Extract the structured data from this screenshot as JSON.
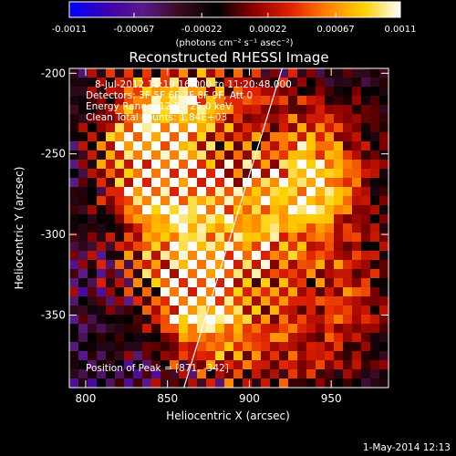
{
  "chart_data": {
    "type": "heatmap",
    "title": "Reconstructed RHESSI Image",
    "xlabel": "Heliocentric X (arcsec)",
    "ylabel": "Heliocentric Y (arcsec)",
    "xlim": [
      790,
      985
    ],
    "ylim": [
      -395,
      -197
    ],
    "xticks": [
      800,
      850,
      900,
      950
    ],
    "yticks": [
      -200,
      -250,
      -300,
      -350
    ],
    "colorbar": {
      "min": -0.0011,
      "max": 0.0011,
      "tick_values": [
        -0.0011,
        -0.00067,
        -0.00022,
        0.00022,
        0.00067,
        0.0011
      ],
      "tick_labels": [
        "-0.0011",
        "-0.00067",
        "-0.00022",
        "0.00022",
        "0.00067",
        "0.0011"
      ],
      "units_label": "(photons cm⁻² s⁻¹ asec⁻²)"
    },
    "annotations": [
      "8-Jul-2012 11:19:16.000 to 11:20:48.000",
      "Detectors: 3F 5F 6F 7F 8F 9F, Att 0",
      "Energy Range: 12.0 - 25.0 keV",
      "Clean    Total counts: 1.84E+03"
    ],
    "peak_label": "Position of Peak = [871, -342]",
    "peak": [
      871,
      -342
    ],
    "limb_line": [
      [
        860,
        -395
      ],
      [
        920,
        -197
      ]
    ],
    "hot_regions": [
      {
        "x": 850,
        "y": -275,
        "sx": 20,
        "sy": 45,
        "amp": 0.9
      },
      {
        "x": 940,
        "y": -262,
        "sx": 22,
        "sy": 30,
        "amp": 0.85
      },
      {
        "x": 895,
        "y": -300,
        "sx": 28,
        "sy": 40,
        "amp": 0.75
      },
      {
        "x": 871,
        "y": -342,
        "sx": 14,
        "sy": 14,
        "amp": 1.0
      },
      {
        "x": 830,
        "y": -245,
        "sx": 18,
        "sy": 22,
        "amp": 0.55
      },
      {
        "x": 870,
        "y": -215,
        "sx": 30,
        "sy": 15,
        "amp": 0.55
      },
      {
        "x": 900,
        "y": -370,
        "sx": 30,
        "sy": 18,
        "amp": 0.5
      },
      {
        "x": 960,
        "y": -340,
        "sx": 20,
        "sy": 30,
        "amp": 0.45
      }
    ],
    "colormap": [
      "#0000ff",
      "#3b00b0",
      "#5a1a8a",
      "#3a0a20",
      "#000000",
      "#8a0000",
      "#e02000",
      "#ff8000",
      "#ffd000",
      "#ffffff"
    ]
  },
  "footer": {
    "timestamp": "1-May-2014 12:13"
  }
}
